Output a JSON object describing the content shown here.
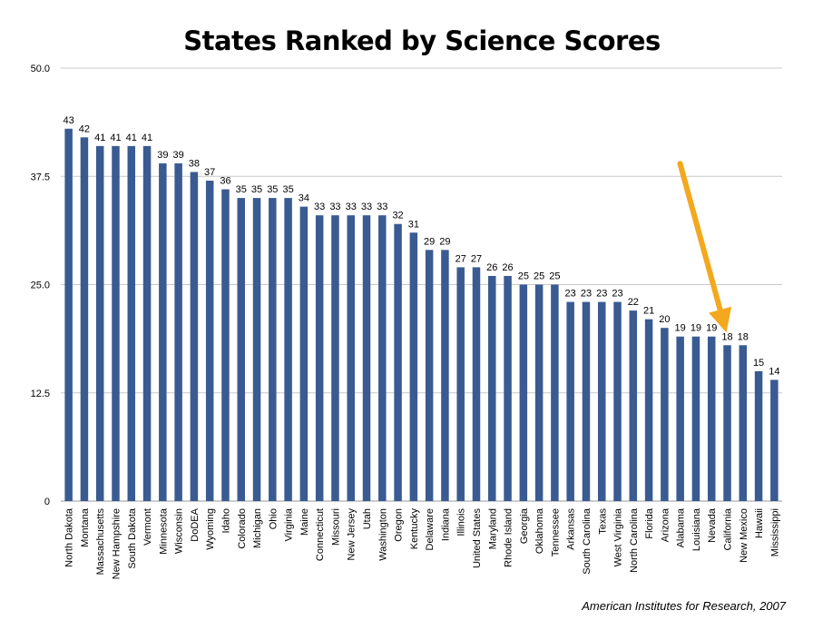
{
  "chart_data": {
    "type": "bar",
    "title": "States Ranked by Science Scores",
    "source": "American Institutes for Research, 2007",
    "ylim": [
      0,
      50
    ],
    "yticks": [
      "0",
      "12.5",
      "25.0",
      "37.5",
      "50.0"
    ],
    "ytick_values": [
      0,
      12.5,
      25,
      37.5,
      50
    ],
    "grid": true,
    "bar_color": "#3a5a92",
    "highlight_arrow_color": "#f4a81d",
    "highlight_category": "California",
    "categories": [
      "North Dakota",
      "Montana",
      "Massachusetts",
      "New Hampshire",
      "South Dakota",
      "Vermont",
      "Minnesota",
      "Wisconsin",
      "DoDEA",
      "Wyoming",
      "Idaho",
      "Colorado",
      "Michigan",
      "Ohio",
      "Virginia",
      "Maine",
      "Connecticut",
      "Missouri",
      "New Jersey",
      "Utah",
      "Washington",
      "Oregon",
      "Kentucky",
      "Delaware",
      "Indiana",
      "Illinois",
      "United States",
      "Maryland",
      "Rhode Island",
      "Georgia",
      "Oklahoma",
      "Tennessee",
      "Arkansas",
      "South Carolina",
      "Texas",
      "West Virginia",
      "North Carolina",
      "Florida",
      "Arizona",
      "Alabama",
      "Louisiana",
      "Nevada",
      "California",
      "New Mexico",
      "Hawaii",
      "Mississippi"
    ],
    "values": [
      43,
      42,
      41,
      41,
      41,
      41,
      39,
      39,
      38,
      37,
      36,
      35,
      35,
      35,
      35,
      34,
      33,
      33,
      33,
      33,
      33,
      32,
      31,
      29,
      29,
      27,
      27,
      26,
      26,
      25,
      25,
      25,
      23,
      23,
      23,
      23,
      22,
      21,
      20,
      19,
      19,
      19,
      18,
      18,
      15,
      14
    ]
  }
}
